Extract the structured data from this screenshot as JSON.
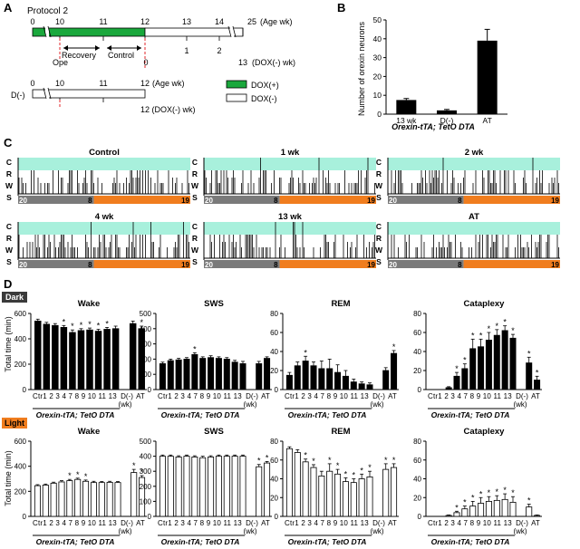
{
  "panels": {
    "A": "A",
    "B": "B",
    "C": "C",
    "D": "D"
  },
  "panelA": {
    "protocol_title": "Protocol 2",
    "age_ticks": [
      "0",
      "10",
      "11",
      "12",
      "13",
      "14",
      "25"
    ],
    "age_label": "(Age wk)",
    "dox_ticks": [
      "0",
      "1",
      "2",
      "13"
    ],
    "dox_label": "(DOX(-) wk)",
    "ope_label": "Ope",
    "recovery_label": "Recovery",
    "control_label": "Control",
    "dminus_label": "D(-)",
    "dminus_ticks": [
      "0",
      "10",
      "11",
      "12"
    ],
    "dminus_age_label": "(Age wk)",
    "dminus_dox_label": "12 (DOX(-) wk)",
    "legend_dox_plus": "DOX(+)",
    "legend_dox_minus": "DOX(-)",
    "colors": {
      "dox_plus": "#1aa83c",
      "dox_minus": "#ffffff"
    }
  },
  "panelC": {
    "state_labels": [
      "C",
      "R",
      "W",
      "S"
    ],
    "hypnograms": [
      {
        "title": "Control",
        "start": "20",
        "mid": "8",
        "end": "19"
      },
      {
        "title": "1 wk",
        "start": "20",
        "mid": "8",
        "end": "19"
      },
      {
        "title": "2 wk",
        "start": "20",
        "mid": "8",
        "end": "19"
      },
      {
        "title": "4 wk",
        "start": "20",
        "mid": "8",
        "end": "19"
      },
      {
        "title": "13 wk",
        "start": "20",
        "mid": "8",
        "end": "19"
      },
      {
        "title": "AT",
        "start": "20",
        "mid": "8",
        "end": "19"
      }
    ],
    "colors": {
      "cataplexy_band": "#a8f0dc",
      "dark_bar": "#7a7a7a",
      "light_bar": "#f07d1e"
    }
  },
  "panelD": {
    "dark_tag": "Dark",
    "light_tag": "Light",
    "ylabel": "Total time (min)",
    "xtitle": "Orexin-tTA; TetO DTA",
    "wk_label": "(wk)",
    "categories": [
      "Ctr",
      "1",
      "2",
      "3",
      "4",
      "7",
      "8",
      "9",
      "10",
      "11",
      "13",
      "D(-)",
      "AT"
    ],
    "tick_text": [
      "Ctr1",
      "2",
      "3",
      "4",
      "7",
      "8",
      "9",
      "10",
      "11",
      "13",
      "D(-)",
      "AT"
    ]
  },
  "chart_data": [
    {
      "type": "bar",
      "id": "B",
      "categories": [
        "13 wk",
        "D(-)",
        "AT"
      ],
      "values": [
        7.5,
        2,
        39
      ],
      "errors": [
        0.8,
        0.5,
        6
      ],
      "ylabel": "Number of orexin neurons",
      "xlabel": "Orexin-tTA; TetO DTA",
      "ylim": [
        0,
        50
      ],
      "yticks": [
        0,
        10,
        20,
        30,
        40,
        50
      ]
    },
    {
      "type": "bar",
      "id": "dark-wake",
      "title": "Wake",
      "phase": "Dark",
      "ylim": [
        0,
        600
      ],
      "yticks": [
        0,
        200,
        400,
        600
      ],
      "values": [
        540,
        515,
        505,
        490,
        450,
        465,
        470,
        460,
        475,
        480,
        null,
        520,
        480
      ],
      "errors": [
        15,
        15,
        15,
        15,
        20,
        15,
        15,
        15,
        15,
        20,
        null,
        20,
        20
      ],
      "stars": [
        false,
        false,
        false,
        true,
        true,
        true,
        true,
        true,
        true,
        false,
        false,
        false,
        true
      ]
    },
    {
      "type": "bar",
      "id": "dark-sws",
      "title": "SWS",
      "phase": "Dark",
      "ylim": [
        0,
        500
      ],
      "yticks": [
        0,
        100,
        200,
        300,
        400,
        500
      ],
      "values": [
        170,
        190,
        195,
        200,
        230,
        205,
        210,
        205,
        200,
        180,
        170,
        null,
        170,
        205
      ],
      "errors": [
        10,
        10,
        10,
        10,
        12,
        10,
        12,
        10,
        10,
        12,
        15,
        null,
        15,
        10
      ],
      "stars": [
        false,
        false,
        false,
        false,
        true,
        false,
        false,
        false,
        false,
        false,
        false,
        false,
        false,
        false
      ]
    },
    {
      "type": "bar",
      "id": "dark-rem",
      "title": "REM",
      "phase": "Dark",
      "ylim": [
        0,
        80
      ],
      "yticks": [
        0,
        20,
        40,
        60,
        80
      ],
      "values": [
        15,
        25,
        30,
        25,
        22,
        22,
        18,
        14,
        8,
        6,
        5,
        null,
        20,
        38
      ],
      "errors": [
        3,
        4,
        5,
        4,
        8,
        10,
        8,
        6,
        3,
        2,
        2,
        null,
        3,
        3
      ],
      "stars": [
        false,
        false,
        true,
        false,
        false,
        false,
        false,
        false,
        false,
        false,
        false,
        false,
        false,
        true
      ]
    },
    {
      "type": "bar",
      "id": "dark-cataplexy",
      "title": "Cataplexy",
      "phase": "Dark",
      "ylim": [
        0,
        80
      ],
      "yticks": [
        0,
        20,
        40,
        60,
        80
      ],
      "values": [
        0,
        0,
        2,
        14,
        22,
        43,
        45,
        52,
        57,
        62,
        54,
        null,
        28,
        10
      ],
      "errors": [
        0,
        0,
        1,
        4,
        5,
        10,
        8,
        8,
        6,
        5,
        4,
        null,
        6,
        4
      ],
      "stars": [
        false,
        false,
        false,
        true,
        true,
        true,
        true,
        true,
        true,
        true,
        true,
        false,
        true,
        true
      ]
    },
    {
      "type": "bar",
      "id": "light-wake",
      "title": "Wake",
      "phase": "Light",
      "ylim": [
        0,
        600
      ],
      "yticks": [
        0,
        200,
        400,
        600
      ],
      "values": [
        245,
        250,
        265,
        275,
        285,
        295,
        280,
        270,
        270,
        272,
        270,
        null,
        350,
        310
      ],
      "errors": [
        8,
        8,
        8,
        10,
        10,
        10,
        10,
        10,
        8,
        8,
        8,
        null,
        25,
        15
      ],
      "stars": [
        false,
        false,
        false,
        false,
        true,
        true,
        true,
        false,
        false,
        false,
        false,
        false,
        true,
        true
      ]
    },
    {
      "type": "bar",
      "id": "light-sws",
      "title": "SWS",
      "phase": "Light",
      "ylim": [
        0,
        500
      ],
      "yticks": [
        0,
        100,
        200,
        300,
        400,
        500
      ],
      "values": [
        400,
        400,
        395,
        400,
        395,
        390,
        395,
        400,
        400,
        400,
        400,
        null,
        330,
        355
      ],
      "errors": [
        8,
        8,
        8,
        8,
        8,
        10,
        8,
        8,
        8,
        8,
        8,
        null,
        15,
        10
      ],
      "stars": [
        false,
        false,
        false,
        false,
        false,
        false,
        false,
        false,
        false,
        false,
        false,
        false,
        true,
        true
      ]
    },
    {
      "type": "bar",
      "id": "light-rem",
      "title": "REM",
      "phase": "Light",
      "ylim": [
        0,
        80
      ],
      "yticks": [
        0,
        20,
        40,
        60,
        80
      ],
      "values": [
        72,
        68,
        58,
        52,
        43,
        48,
        45,
        37,
        36,
        40,
        42,
        null,
        50,
        52
      ],
      "errors": [
        2,
        3,
        3,
        3,
        5,
        8,
        5,
        4,
        4,
        5,
        6,
        null,
        6,
        4
      ],
      "stars": [
        false,
        false,
        true,
        true,
        false,
        true,
        true,
        true,
        true,
        true,
        true,
        false,
        true,
        true
      ]
    },
    {
      "type": "bar",
      "id": "light-cataplexy",
      "title": "Cataplexy",
      "phase": "Light",
      "ylim": [
        0,
        80
      ],
      "yticks": [
        0,
        20,
        40,
        60,
        80
      ],
      "values": [
        0,
        0,
        1,
        4,
        8,
        11,
        14,
        16,
        17,
        18,
        15,
        null,
        10,
        1
      ],
      "errors": [
        0,
        0,
        0.5,
        1.5,
        3,
        5,
        6,
        5,
        5,
        6,
        6,
        null,
        3,
        0.5
      ],
      "stars": [
        false,
        false,
        false,
        true,
        true,
        true,
        true,
        true,
        true,
        true,
        true,
        false,
        true,
        false
      ]
    }
  ]
}
